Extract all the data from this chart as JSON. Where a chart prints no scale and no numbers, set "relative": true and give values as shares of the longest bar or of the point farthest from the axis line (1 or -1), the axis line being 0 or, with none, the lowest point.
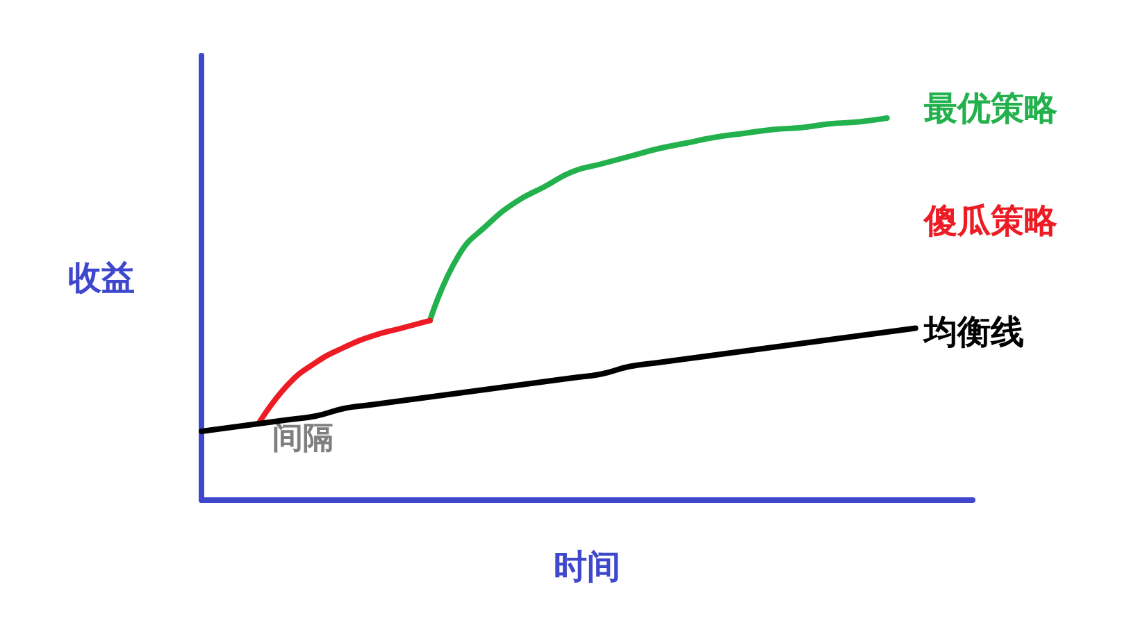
{
  "chart_data": {
    "type": "line",
    "relative": true,
    "xlabel": "时间",
    "ylabel": "收益",
    "annotations": [
      "间隔"
    ],
    "grid": false,
    "legend": false,
    "marker": "none",
    "line_style": "solid",
    "categories": [
      null,
      null,
      null,
      null,
      null,
      null,
      null,
      null,
      null,
      null,
      null,
      null,
      null,
      null,
      null,
      null,
      null,
      null,
      null,
      null,
      null,
      null,
      null,
      null,
      null,
      null,
      null,
      null
    ],
    "series": [
      {
        "name": "最优策略",
        "color": "#22b14c",
        "values": [
          null,
          null,
          null,
          null,
          null,
          null,
          null,
          null,
          0.47,
          0.64,
          0.72,
          0.78,
          0.82,
          0.86,
          0.88,
          0.9,
          0.92,
          0.935,
          0.95,
          0.96,
          0.97,
          0.975,
          0.985,
          0.99,
          1.0,
          null,
          null,
          null
        ]
      },
      {
        "name": "傻瓜策略",
        "color": "#ed1c24",
        "values": [
          null,
          null,
          0.2,
          0.3,
          0.36,
          0.4,
          0.43,
          0.45,
          0.47,
          null,
          null,
          null,
          null,
          null,
          null,
          null,
          null,
          null,
          null,
          null,
          null,
          null,
          null,
          null,
          null,
          null,
          null,
          null
        ]
      },
      {
        "name": "均衡线",
        "color": "#000000",
        "values": [
          0.18,
          0.19,
          0.2,
          0.21,
          0.22,
          0.24,
          0.25,
          0.26,
          0.27,
          0.28,
          0.29,
          0.3,
          0.31,
          0.32,
          0.33,
          0.35,
          0.36,
          0.37,
          0.38,
          0.39,
          0.4,
          0.41,
          0.42,
          0.43,
          0.44,
          0.45,
          null,
          null
        ]
      }
    ]
  }
}
